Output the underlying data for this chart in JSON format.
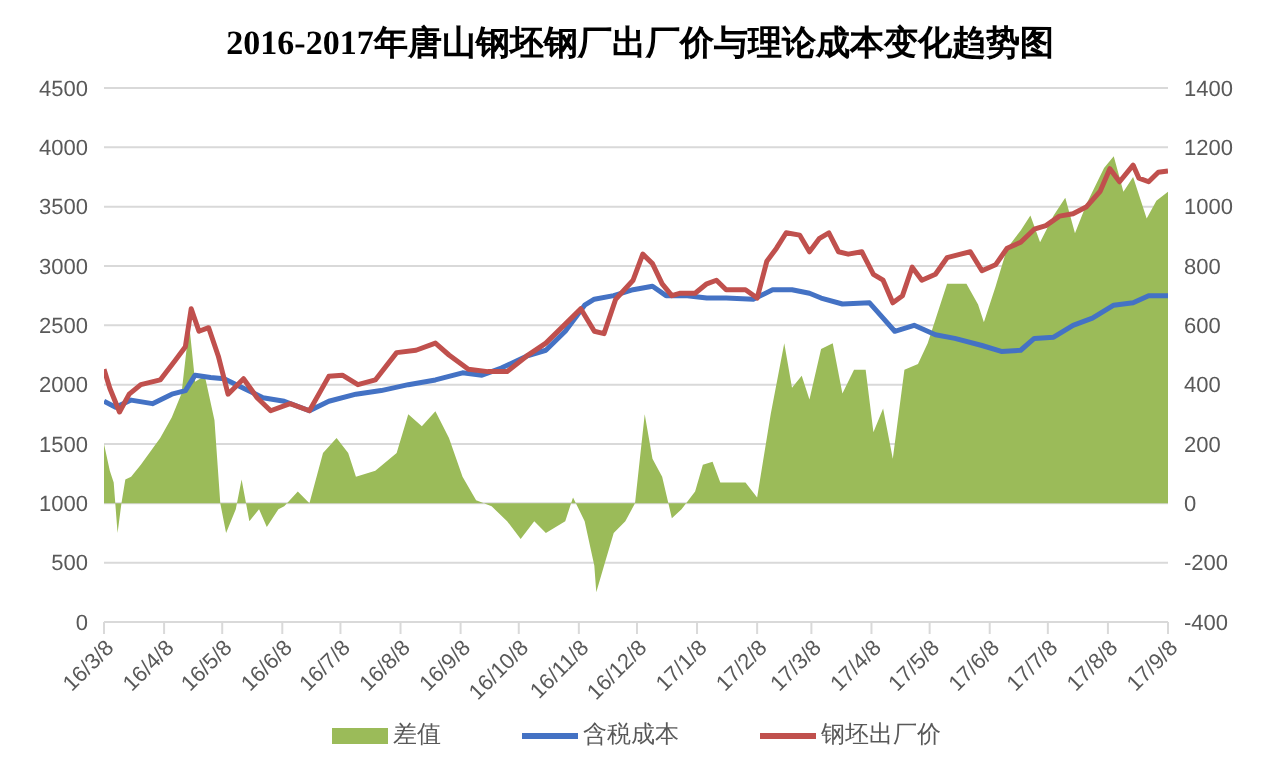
{
  "chart_data": {
    "type": "line",
    "title": "2016-2017年唐山钢坯钢厂出厂价与理论成本变化趋势图",
    "xlim": [
      "2016-03-08",
      "2017-09-08"
    ],
    "xticks": [
      {
        "value": "2016-03-08",
        "label": "16/3/8"
      },
      {
        "value": "2016-04-08",
        "label": "16/4/8"
      },
      {
        "value": "2016-05-08",
        "label": "16/5/8"
      },
      {
        "value": "2016-06-08",
        "label": "16/6/8"
      },
      {
        "value": "2016-07-08",
        "label": "16/7/8"
      },
      {
        "value": "2016-08-08",
        "label": "16/8/8"
      },
      {
        "value": "2016-09-08",
        "label": "16/9/8"
      },
      {
        "value": "2016-10-08",
        "label": "16/10/8"
      },
      {
        "value": "2016-11-08",
        "label": "16/11/8"
      },
      {
        "value": "2016-12-08",
        "label": "16/12/8"
      },
      {
        "value": "2017-01-08",
        "label": "17/1/8"
      },
      {
        "value": "2017-02-08",
        "label": "17/2/8"
      },
      {
        "value": "2017-03-08",
        "label": "17/3/8"
      },
      {
        "value": "2017-04-08",
        "label": "17/4/8"
      },
      {
        "value": "2017-05-08",
        "label": "17/5/8"
      },
      {
        "value": "2017-06-08",
        "label": "17/6/8"
      },
      {
        "value": "2017-07-08",
        "label": "17/7/8"
      },
      {
        "value": "2017-08-08",
        "label": "17/8/8"
      },
      {
        "value": "2017-09-08",
        "label": "17/9/8"
      }
    ],
    "ylim": [
      0,
      4500
    ],
    "yticks": [
      0,
      500,
      1000,
      1500,
      2000,
      2500,
      3000,
      3500,
      4000,
      4500
    ],
    "y2lim": [
      -400,
      1400
    ],
    "y2ticks": [
      -400,
      -200,
      0,
      200,
      400,
      600,
      800,
      1000,
      1200,
      1400
    ],
    "grid": "y",
    "legend": "bottom",
    "marker": "none",
    "series": [
      {
        "name": "差值",
        "type": "area",
        "axis": "y2",
        "color": "#9bbb59",
        "x": [
          "2016-03-08",
          "2016-03-11",
          "2016-03-13",
          "2016-03-15",
          "2016-03-17",
          "2016-03-19",
          "2016-03-22",
          "2016-03-27",
          "2016-04-06",
          "2016-04-12",
          "2016-04-17",
          "2016-04-21",
          "2016-04-24",
          "2016-04-29",
          "2016-05-04",
          "2016-05-07",
          "2016-05-10",
          "2016-05-15",
          "2016-05-18",
          "2016-05-22",
          "2016-05-27",
          "2016-05-31",
          "2016-06-06",
          "2016-06-09",
          "2016-06-16",
          "2016-06-22",
          "2016-06-29",
          "2016-07-06",
          "2016-07-12",
          "2016-07-16",
          "2016-07-26",
          "2016-08-06",
          "2016-08-12",
          "2016-08-19",
          "2016-08-26",
          "2016-09-02",
          "2016-09-09",
          "2016-09-16",
          "2016-09-24",
          "2016-10-02",
          "2016-10-09",
          "2016-10-16",
          "2016-10-22",
          "2016-11-01",
          "2016-11-05",
          "2016-11-11",
          "2016-11-16",
          "2016-11-17",
          "2016-11-21",
          "2016-11-26",
          "2016-12-02",
          "2016-12-07",
          "2016-12-12",
          "2016-12-16",
          "2016-12-21",
          "2016-12-26",
          "2016-12-31",
          "2017-01-07",
          "2017-01-11",
          "2017-01-16",
          "2017-01-20",
          "2017-02-02",
          "2017-02-08",
          "2017-02-15",
          "2017-02-22",
          "2017-02-26",
          "2017-03-03",
          "2017-03-07",
          "2017-03-13",
          "2017-03-19",
          "2017-03-24",
          "2017-03-30",
          "2017-04-05",
          "2017-04-09",
          "2017-04-14",
          "2017-04-19",
          "2017-04-25",
          "2017-05-02",
          "2017-05-07",
          "2017-05-11",
          "2017-05-17",
          "2017-05-27",
          "2017-06-02",
          "2017-06-05",
          "2017-06-11",
          "2017-06-17",
          "2017-06-24",
          "2017-06-29",
          "2017-07-04",
          "2017-07-11",
          "2017-07-17",
          "2017-07-22",
          "2017-07-28",
          "2017-08-06",
          "2017-08-11",
          "2017-08-16",
          "2017-08-21",
          "2017-08-28",
          "2017-09-02",
          "2017-09-08"
        ],
        "values": [
          200,
          110,
          70,
          -100,
          0,
          80,
          90,
          130,
          220,
          290,
          370,
          600,
          410,
          430,
          280,
          0,
          -100,
          -20,
          80,
          -60,
          -20,
          -80,
          -20,
          -10,
          40,
          0,
          170,
          220,
          170,
          90,
          110,
          170,
          300,
          260,
          310,
          220,
          90,
          10,
          -10,
          -60,
          -120,
          -60,
          -100,
          -60,
          20,
          -60,
          -210,
          -300,
          -210,
          -100,
          -60,
          0,
          300,
          150,
          90,
          -50,
          -20,
          40,
          130,
          140,
          70,
          70,
          20,
          300,
          540,
          390,
          430,
          350,
          520,
          540,
          370,
          450,
          450,
          240,
          320,
          150,
          450,
          470,
          540,
          620,
          740,
          740,
          670,
          610,
          730,
          860,
          920,
          970,
          880,
          970,
          1030,
          910,
          1010,
          1130,
          1170,
          1050,
          1100,
          960,
          1020,
          1050
        ]
      },
      {
        "name": "含税成本",
        "color": "#4472c4",
        "x": [
          "2016-03-08",
          "2016-03-14",
          "2016-03-22",
          "2016-04-02",
          "2016-04-12",
          "2016-04-19",
          "2016-04-24",
          "2016-05-02",
          "2016-05-09",
          "2016-05-19",
          "2016-05-29",
          "2016-06-09",
          "2016-06-22",
          "2016-07-02",
          "2016-07-16",
          "2016-07-29",
          "2016-08-12",
          "2016-08-26",
          "2016-09-09",
          "2016-09-19",
          "2016-09-29",
          "2016-10-12",
          "2016-10-22",
          "2016-11-01",
          "2016-11-11",
          "2016-11-16",
          "2016-11-26",
          "2016-12-06",
          "2016-12-16",
          "2016-12-23",
          "2017-01-03",
          "2017-01-13",
          "2017-01-23",
          "2017-02-06",
          "2017-02-16",
          "2017-02-26",
          "2017-03-07",
          "2017-03-13",
          "2017-03-24",
          "2017-04-07",
          "2017-04-14",
          "2017-04-20",
          "2017-04-30",
          "2017-05-11",
          "2017-05-21",
          "2017-06-04",
          "2017-06-14",
          "2017-06-24",
          "2017-07-01",
          "2017-07-11",
          "2017-07-21",
          "2017-07-31",
          "2017-08-11",
          "2017-08-21",
          "2017-08-29",
          "2017-09-08"
        ],
        "values": [
          1860,
          1810,
          1870,
          1840,
          1920,
          1950,
          2080,
          2060,
          2050,
          1970,
          1890,
          1860,
          1780,
          1860,
          1920,
          1950,
          2000,
          2040,
          2100,
          2080,
          2140,
          2240,
          2290,
          2450,
          2670,
          2720,
          2750,
          2800,
          2830,
          2750,
          2750,
          2730,
          2730,
          2720,
          2800,
          2800,
          2770,
          2730,
          2680,
          2690,
          2560,
          2450,
          2500,
          2420,
          2390,
          2330,
          2280,
          2290,
          2390,
          2400,
          2500,
          2560,
          2670,
          2690,
          2750,
          2750
        ]
      },
      {
        "name": "钢坯出厂价",
        "color": "#c0504d",
        "x": [
          "2016-03-08",
          "2016-03-11",
          "2016-03-16",
          "2016-03-21",
          "2016-03-27",
          "2016-04-06",
          "2016-04-14",
          "2016-04-19",
          "2016-04-22",
          "2016-04-26",
          "2016-05-01",
          "2016-05-06",
          "2016-05-11",
          "2016-05-19",
          "2016-05-26",
          "2016-06-02",
          "2016-06-12",
          "2016-06-22",
          "2016-07-02",
          "2016-07-09",
          "2016-07-17",
          "2016-07-26",
          "2016-08-06",
          "2016-08-16",
          "2016-08-26",
          "2016-09-02",
          "2016-09-12",
          "2016-09-22",
          "2016-10-02",
          "2016-10-12",
          "2016-10-22",
          "2016-11-01",
          "2016-11-09",
          "2016-11-16",
          "2016-11-21",
          "2016-11-27",
          "2016-12-06",
          "2016-12-11",
          "2016-12-16",
          "2016-12-21",
          "2016-12-26",
          "2016-12-30",
          "2017-01-07",
          "2017-01-13",
          "2017-01-18",
          "2017-01-23",
          "2017-02-02",
          "2017-02-08",
          "2017-02-13",
          "2017-02-18",
          "2017-02-23",
          "2017-03-02",
          "2017-03-07",
          "2017-03-12",
          "2017-03-17",
          "2017-03-22",
          "2017-03-27",
          "2017-04-03",
          "2017-04-09",
          "2017-04-14",
          "2017-04-19",
          "2017-04-24",
          "2017-04-29",
          "2017-05-04",
          "2017-05-11",
          "2017-05-17",
          "2017-05-24",
          "2017-05-29",
          "2017-06-04",
          "2017-06-11",
          "2017-06-17",
          "2017-06-24",
          "2017-07-01",
          "2017-07-07",
          "2017-07-14",
          "2017-07-21",
          "2017-07-28",
          "2017-08-04",
          "2017-08-09",
          "2017-08-14",
          "2017-08-21",
          "2017-08-24",
          "2017-08-29",
          "2017-09-03",
          "2017-09-08"
        ],
        "values": [
          2130,
          1970,
          1770,
          1920,
          2000,
          2040,
          2210,
          2320,
          2640,
          2450,
          2480,
          2240,
          1920,
          2050,
          1890,
          1780,
          1840,
          1780,
          2070,
          2080,
          2000,
          2040,
          2270,
          2290,
          2350,
          2250,
          2130,
          2110,
          2110,
          2240,
          2350,
          2510,
          2640,
          2450,
          2430,
          2720,
          2880,
          3100,
          3020,
          2850,
          2750,
          2770,
          2770,
          2850,
          2880,
          2800,
          2800,
          2730,
          3040,
          3150,
          3280,
          3260,
          3120,
          3230,
          3280,
          3120,
          3100,
          3120,
          2930,
          2880,
          2690,
          2750,
          2990,
          2880,
          2930,
          3070,
          3100,
          3120,
          2960,
          3010,
          3150,
          3200,
          3310,
          3340,
          3420,
          3440,
          3500,
          3630,
          3820,
          3710,
          3850,
          3740,
          3710,
          3790,
          3800
        ]
      }
    ]
  }
}
